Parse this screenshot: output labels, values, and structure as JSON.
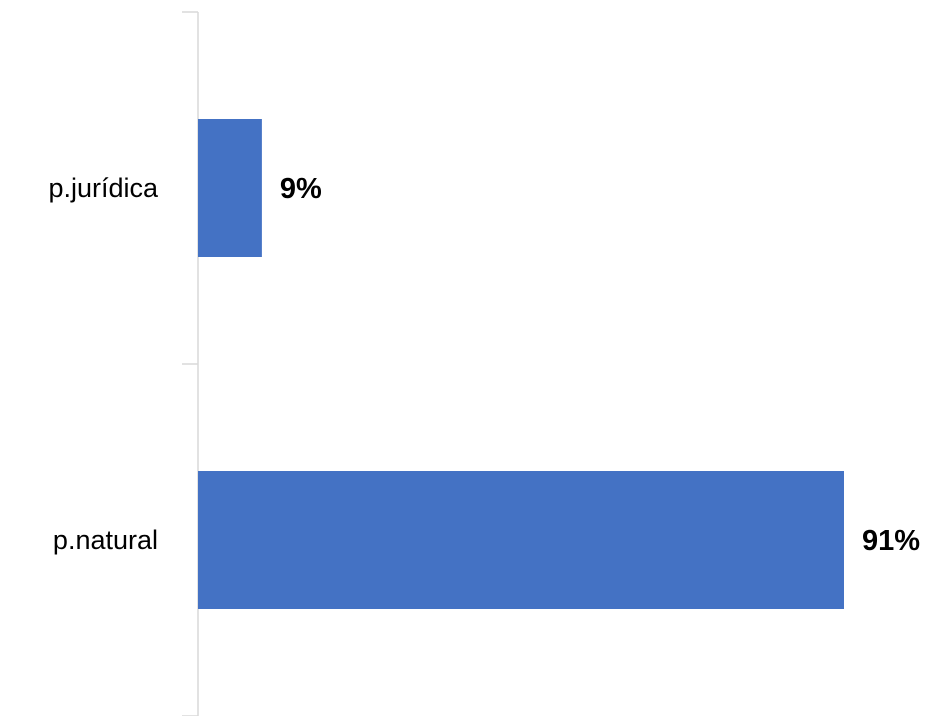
{
  "chart_data": {
    "type": "bar",
    "orientation": "horizontal",
    "categories": [
      "p.jurídica",
      "p.natural"
    ],
    "values": [
      9,
      91
    ],
    "data_labels": [
      "9%",
      "91%"
    ],
    "xlim": [
      0,
      91
    ],
    "value_unit": "%",
    "grid": false,
    "legend": "none",
    "bar_color": "#4472C4",
    "axis_color": "#D9D9D9"
  }
}
